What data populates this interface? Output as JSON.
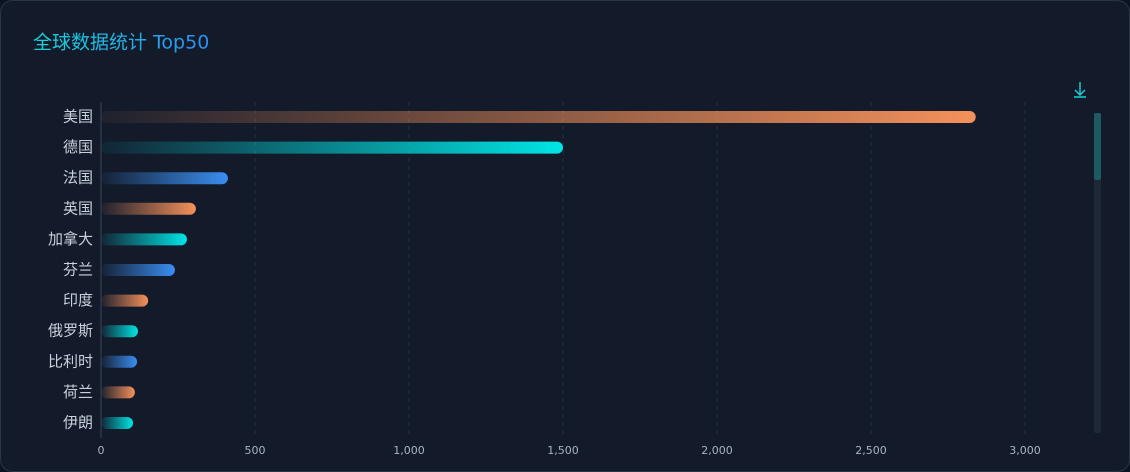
{
  "chart_data": {
    "type": "bar",
    "orientation": "horizontal",
    "title": "全球数据统计 Top50",
    "categories": [
      "美国",
      "德国",
      "法国",
      "英国",
      "加拿大",
      "芬兰",
      "印度",
      "俄罗斯",
      "比利时",
      "荷兰",
      "伊朗"
    ],
    "values": [
      2840,
      1500,
      412,
      308,
      279,
      240,
      153,
      120,
      117,
      110,
      104
    ],
    "colors": [
      "#f5915a",
      "#00e5e5",
      "#3a8ef0",
      "#f5915a",
      "#00e5e5",
      "#3a8ef0",
      "#f5915a",
      "#00e5e5",
      "#3a8ef0",
      "#f5915a",
      "#00e5e5"
    ],
    "xlim": [
      0,
      3000
    ],
    "xticks": [
      0,
      500,
      {
        "value": 1000,
        "label": "1,000"
      },
      {
        "value": 1500,
        "label": "1,500"
      },
      {
        "value": 2000,
        "label": "2,000"
      },
      {
        "value": 2500,
        "label": "2,500"
      },
      {
        "value": 3000,
        "label": "3,000"
      }
    ],
    "grid": true
  }
}
